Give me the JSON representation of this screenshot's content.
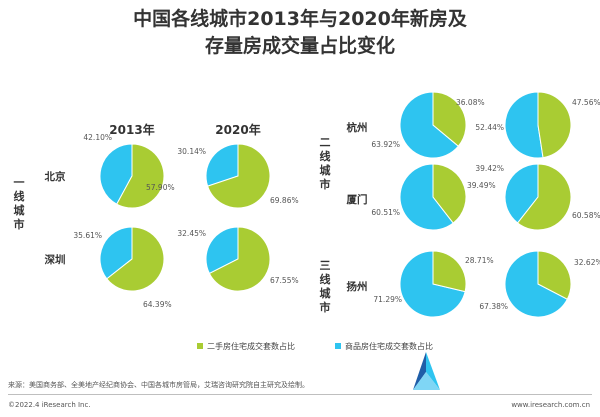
{
  "title_line1": "中国各线城市2013年与2020年新房及",
  "title_line2": "存量房成交量占比变化",
  "tier_labels": [
    "一线城市",
    "二线城市",
    "三线城市"
  ],
  "year_headers": [
    "2013年",
    "2020年"
  ],
  "city_labels": [
    "北京",
    "深圳",
    "杭州",
    "厦门",
    "扬州"
  ],
  "source_text": "来源：美国商务部、全美地产经纪商协会、中国各城市房管局，艾瑞咨询研究院自主研究及绘制。",
  "copyright_text": "©2022.4 iResearch Inc.",
  "site_text": "www.iresearch.com.cn",
  "chart_data": {
    "type": "pie",
    "title": "中国各线城市2013年与2020年新房及存量房成交量占比变化",
    "legend": [
      "二手房住宅成交套数占比",
      "商品房住宅成交套数占比"
    ],
    "colors": {
      "second_hand": "#a9cc33",
      "new_home": "#2ec4f0"
    },
    "charts": [
      {
        "city": "北京",
        "tier": "一线城市",
        "year": "2013年",
        "second_hand": 57.9,
        "new_home": 42.1,
        "labels": {
          "second_hand": "57.90%",
          "new_home": "42.10%"
        }
      },
      {
        "city": "北京",
        "tier": "一线城市",
        "year": "2020年",
        "second_hand": 69.86,
        "new_home": 30.14,
        "labels": {
          "second_hand": "69.86%",
          "new_home": "30.14%"
        }
      },
      {
        "city": "深圳",
        "tier": "一线城市",
        "year": "2013年",
        "second_hand": 64.39,
        "new_home": 35.61,
        "labels": {
          "second_hand": "64.39%",
          "new_home": "35.61%"
        }
      },
      {
        "city": "深圳",
        "tier": "一线城市",
        "year": "2020年",
        "second_hand": 67.55,
        "new_home": 32.45,
        "labels": {
          "second_hand": "67.55%",
          "new_home": "32.45%"
        }
      },
      {
        "city": "杭州",
        "tier": "二线城市",
        "year": "2013年",
        "second_hand": 36.08,
        "new_home": 63.92,
        "labels": {
          "second_hand": "36.08%",
          "new_home": "63.92%"
        }
      },
      {
        "city": "杭州",
        "tier": "二线城市",
        "year": "2020年",
        "second_hand": 47.56,
        "new_home": 52.44,
        "labels": {
          "second_hand": "47.56%",
          "new_home": "52.44%"
        }
      },
      {
        "city": "厦门",
        "tier": "二线城市",
        "year": "2013年",
        "second_hand": 39.49,
        "new_home": 60.51,
        "labels": {
          "second_hand": "39.49%",
          "new_home": "60.51%"
        }
      },
      {
        "city": "厦门",
        "tier": "二线城市",
        "year": "2020年",
        "second_hand": 60.58,
        "new_home": 39.42,
        "labels": {
          "second_hand": "60.58%",
          "new_home": "39.42%"
        }
      },
      {
        "city": "扬州",
        "tier": "三线城市",
        "year": "2013年",
        "second_hand": 28.71,
        "new_home": 71.29,
        "labels": {
          "second_hand": "28.71%",
          "new_home": "71.29%"
        }
      },
      {
        "city": "扬州",
        "tier": "三线城市",
        "year": "2020年",
        "second_hand": 32.62,
        "new_home": 67.38,
        "labels": {
          "second_hand": "32.62%",
          "new_home": "67.38%"
        }
      }
    ]
  }
}
